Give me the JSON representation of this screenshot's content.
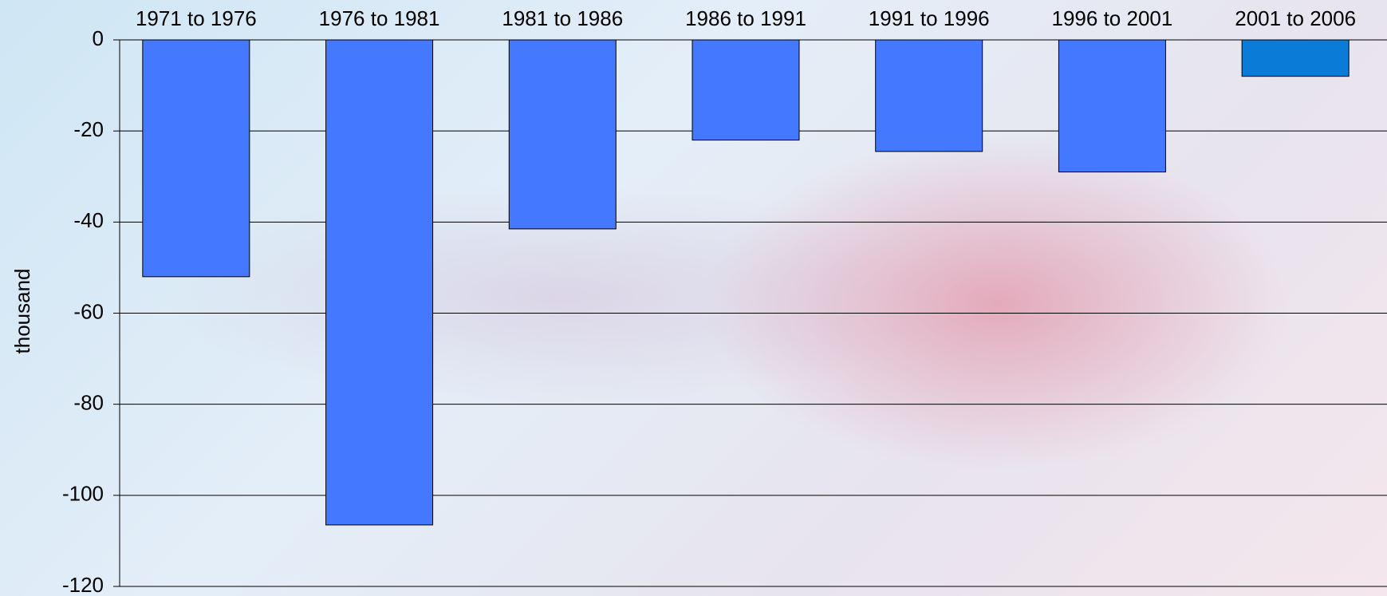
{
  "chart_data": {
    "type": "bar",
    "y_label": "thousand",
    "categories": [
      "1971 to 1976",
      "1976 to 1981",
      "1981 to 1986",
      "1986 to 1991",
      "1991 to 1996",
      "1996 to 2001",
      "2001 to 2006"
    ],
    "values": [
      -52,
      -106.5,
      -41.5,
      -22,
      -24.5,
      -29,
      -8
    ],
    "colors": [
      "#4479ff",
      "#4479ff",
      "#4479ff",
      "#4479ff",
      "#4479ff",
      "#4479ff",
      "#0a7bd6"
    ],
    "ylim": [
      -120,
      0
    ],
    "yticks": [
      0,
      -20,
      -40,
      -60,
      -80,
      -100,
      -120
    ],
    "grid": true
  }
}
